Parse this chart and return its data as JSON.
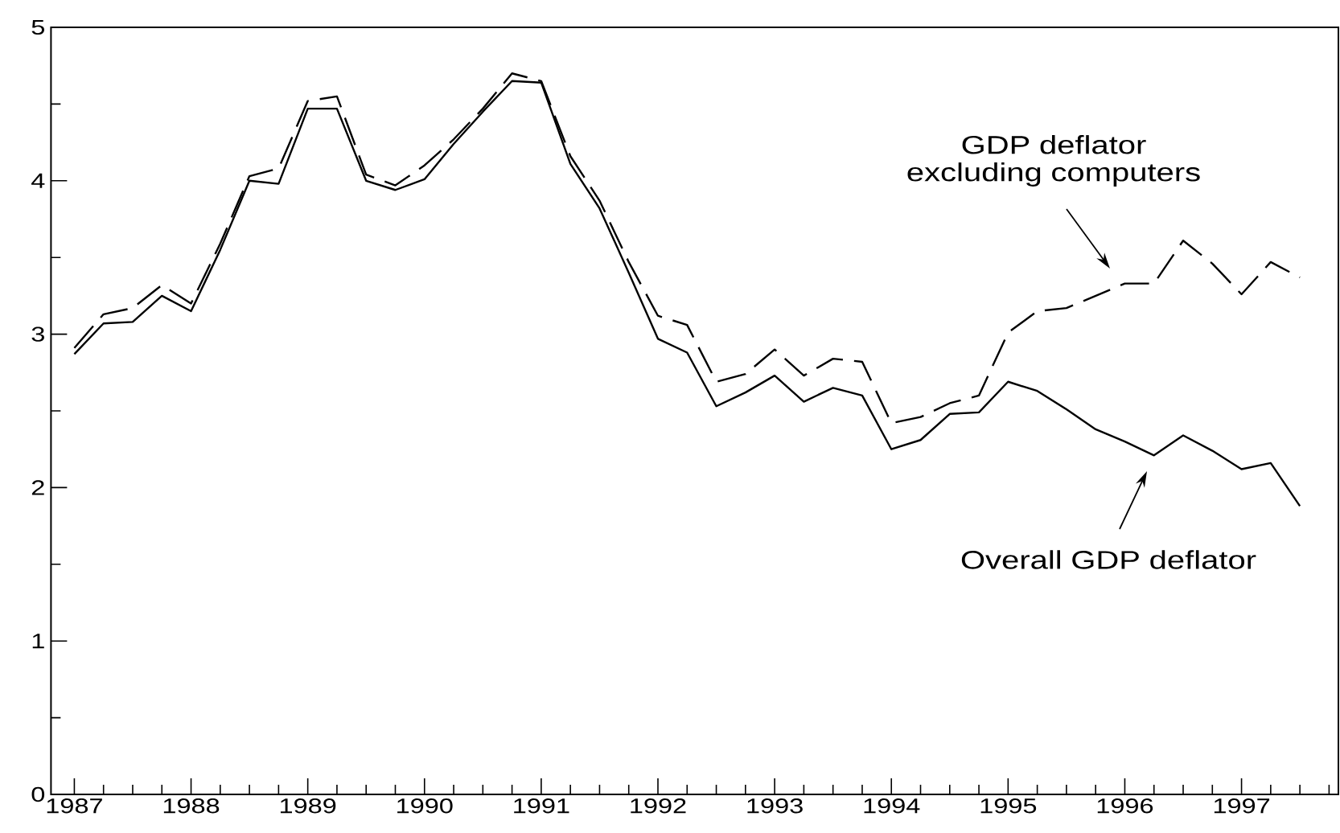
{
  "chart_data": {
    "type": "line",
    "x": [
      1987.0,
      1987.25,
      1987.5,
      1987.75,
      1988.0,
      1988.25,
      1988.5,
      1988.75,
      1989.0,
      1989.25,
      1989.5,
      1989.75,
      1990.0,
      1990.25,
      1990.5,
      1990.75,
      1991.0,
      1991.25,
      1991.5,
      1991.75,
      1992.0,
      1992.25,
      1992.5,
      1992.75,
      1993.0,
      1993.25,
      1993.5,
      1993.75,
      1994.0,
      1994.25,
      1994.5,
      1994.75,
      1995.0,
      1995.25,
      1995.5,
      1995.75,
      1996.0,
      1996.25,
      1996.5,
      1996.75,
      1997.0,
      1997.25,
      1997.5
    ],
    "series": [
      {
        "color": "#000000",
        "line_style": "solid",
        "values": [
          2.87,
          3.07,
          3.08,
          3.25,
          3.15,
          3.55,
          4.0,
          3.98,
          4.47,
          4.47,
          4.0,
          3.94,
          4.01,
          4.24,
          4.45,
          4.65,
          4.64,
          4.11,
          3.82,
          3.4,
          2.97,
          2.88,
          2.53,
          2.62,
          2.73,
          2.56,
          2.65,
          2.6,
          2.25,
          2.31,
          2.48,
          2.49,
          2.69,
          2.63,
          2.51,
          2.38,
          2.3,
          2.21,
          2.34,
          2.24,
          2.12,
          2.16,
          1.88
        ]
      },
      {
        "color": "#000000",
        "line_style": "dashed",
        "values": [
          2.91,
          3.13,
          3.17,
          3.32,
          3.2,
          3.59,
          4.03,
          4.08,
          4.52,
          4.55,
          4.04,
          3.97,
          4.1,
          4.27,
          4.47,
          4.7,
          4.65,
          4.16,
          3.87,
          3.47,
          3.12,
          3.06,
          2.69,
          2.74,
          2.9,
          2.73,
          2.84,
          2.82,
          2.42,
          2.46,
          2.55,
          2.6,
          3.01,
          3.15,
          3.17,
          3.25,
          3.33,
          3.33,
          3.61,
          3.46,
          3.26,
          3.47,
          3.37
        ]
      }
    ],
    "annotations": [
      "GDP deflator excluding computers",
      "Overall GDP deflator"
    ],
    "xlim": [
      1986.8,
      1997.83
    ],
    "ylim": [
      0,
      5
    ],
    "xticks": [
      1987,
      {
        "value": 1987.25,
        "label": null
      },
      {
        "value": 1987.5,
        "label": null
      },
      {
        "value": 1987.75,
        "label": null
      },
      1988,
      {
        "value": 1988.25,
        "label": null
      },
      {
        "value": 1988.5,
        "label": null
      },
      {
        "value": 1988.75,
        "label": null
      },
      1989,
      {
        "value": 1989.25,
        "label": null
      },
      {
        "value": 1989.5,
        "label": null
      },
      {
        "value": 1989.75,
        "label": null
      },
      1990,
      {
        "value": 1990.25,
        "label": null
      },
      {
        "value": 1990.5,
        "label": null
      },
      {
        "value": 1990.75,
        "label": null
      },
      1991,
      {
        "value": 1991.25,
        "label": null
      },
      {
        "value": 1991.5,
        "label": null
      },
      {
        "value": 1991.75,
        "label": null
      },
      1992,
      {
        "value": 1992.25,
        "label": null
      },
      {
        "value": 1992.5,
        "label": null
      },
      {
        "value": 1992.75,
        "label": null
      },
      1993,
      {
        "value": 1993.25,
        "label": null
      },
      {
        "value": 1993.5,
        "label": null
      },
      {
        "value": 1993.75,
        "label": null
      },
      1994,
      {
        "value": 1994.25,
        "label": null
      },
      {
        "value": 1994.5,
        "label": null
      },
      {
        "value": 1994.75,
        "label": null
      },
      1995,
      {
        "value": 1995.25,
        "label": null
      },
      {
        "value": 1995.5,
        "label": null
      },
      {
        "value": 1995.75,
        "label": null
      },
      1996,
      {
        "value": 1996.25,
        "label": null
      },
      {
        "value": 1996.5,
        "label": null
      },
      {
        "value": 1996.75,
        "label": null
      },
      1997,
      {
        "value": 1997.25,
        "label": null
      },
      {
        "value": 1997.5,
        "label": null
      },
      {
        "value": 1997.75,
        "label": null
      }
    ],
    "yticks": [
      0,
      {
        "value": 0.5,
        "label": null
      },
      1,
      {
        "value": 1.5,
        "label": null
      },
      2,
      {
        "value": 2.5,
        "label": null
      },
      3,
      {
        "value": 3.5,
        "label": null
      },
      4,
      {
        "value": 4.5,
        "label": null
      },
      5
    ],
    "grid": false
  }
}
